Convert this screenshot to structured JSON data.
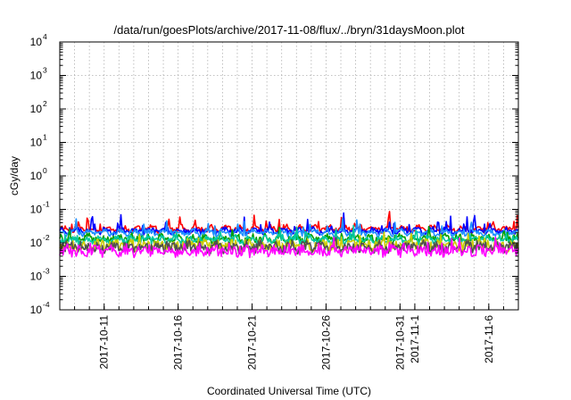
{
  "chart_data": {
    "type": "line",
    "title": "/data/run/goesPlots/archive/2017-11-08/flux/../bryn/31daysMoon.plot",
    "xlabel": "Coordinated Universal Time (UTC)",
    "ylabel": "cGy/day",
    "yscale": "log",
    "ylim": [
      0.0001,
      10000
    ],
    "xlim": [
      "2017-10-08",
      "2017-11-08"
    ],
    "grid": true,
    "y_ticks": [
      {
        "base": "10",
        "exp": "4",
        "value": 10000
      },
      {
        "base": "10",
        "exp": "3",
        "value": 1000
      },
      {
        "base": "10",
        "exp": "2",
        "value": 100
      },
      {
        "base": "10",
        "exp": "1",
        "value": 10
      },
      {
        "base": "10",
        "exp": "0",
        "value": 1
      },
      {
        "base": "10",
        "exp": "-1",
        "value": 0.1
      },
      {
        "base": "10",
        "exp": "-2",
        "value": 0.01
      },
      {
        "base": "10",
        "exp": "-3",
        "value": 0.001
      },
      {
        "base": "10",
        "exp": "-4",
        "value": 0.0001
      }
    ],
    "x_ticks": [
      {
        "date": "2017-10-11",
        "label": "2017-10-11"
      },
      {
        "date": "2017-10-16",
        "label": "2017-10-16"
      },
      {
        "date": "2017-10-21",
        "label": "2017-10-21"
      },
      {
        "date": "2017-10-26",
        "label": "2017-10-26"
      },
      {
        "date": "2017-10-31",
        "label": "2017-10-31"
      },
      {
        "date": "2017-11-01",
        "label": "2017-11-1"
      },
      {
        "date": "2017-11-06",
        "label": "2017-11-6"
      }
    ],
    "series": [
      {
        "color": "#ff0000",
        "base": 0.026,
        "amp": 0.16,
        "spikes": 0.5,
        "seed": 11
      },
      {
        "color": "#0000ff",
        "base": 0.023,
        "amp": 0.15,
        "spikes": 0.45,
        "seed": 23
      },
      {
        "color": "#1e90ff",
        "base": 0.02,
        "amp": 0.14,
        "spikes": 0.4,
        "seed": 37
      },
      {
        "color": "#00a000",
        "base": 0.0135,
        "amp": 0.22,
        "spikes": 0.3,
        "seed": 41
      },
      {
        "color": "#00c8a0",
        "base": 0.0125,
        "amp": 0.2,
        "spikes": 0.3,
        "seed": 53
      },
      {
        "color": "#cccc00",
        "base": 0.0085,
        "amp": 0.3,
        "spikes": 0.25,
        "seed": 67
      },
      {
        "color": "#505050",
        "base": 0.0075,
        "amp": 0.3,
        "spikes": 0.25,
        "seed": 71
      },
      {
        "color": "#ff00ff",
        "base": 0.0058,
        "amp": 0.32,
        "spikes": 0.35,
        "seed": 83
      }
    ]
  }
}
